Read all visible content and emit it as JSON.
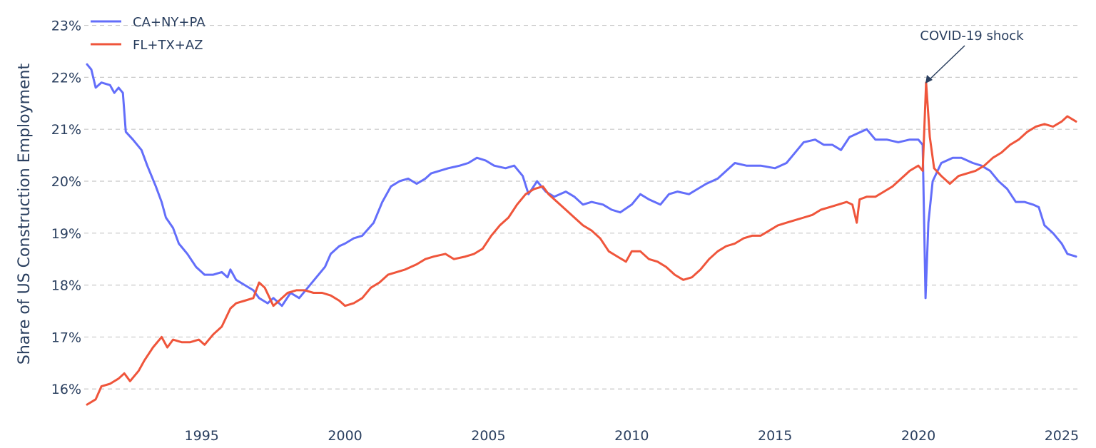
{
  "chart_data": {
    "type": "line",
    "ylabel": "Share of US Construction Employment",
    "xlabel": "",
    "xlim": [
      1990.9,
      2025.6
    ],
    "ylim": [
      15.55,
      23.2
    ],
    "y_ticks": [
      16,
      17,
      18,
      19,
      20,
      21,
      22,
      23
    ],
    "y_tick_labels": [
      "16%",
      "17%",
      "18%",
      "19%",
      "20%",
      "21%",
      "22%",
      "23%"
    ],
    "x_ticks": [
      1995,
      2000,
      2005,
      2010,
      2015,
      2020,
      2025
    ],
    "x_tick_labels": [
      "1995",
      "2000",
      "2005",
      "2010",
      "2015",
      "2020",
      "2025"
    ],
    "grid": "horizontal, dashed",
    "legend_position": "top-left",
    "annotation": {
      "text": "COVID-19 shock",
      "x": 2020.3,
      "y": 21.85
    },
    "series": [
      {
        "name": "CA+NY+PA",
        "color": "#636efa",
        "points": [
          [
            1991.0,
            22.25
          ],
          [
            1991.15,
            22.15
          ],
          [
            1991.3,
            21.8
          ],
          [
            1991.5,
            21.9
          ],
          [
            1991.8,
            21.85
          ],
          [
            1991.95,
            21.7
          ],
          [
            1992.1,
            21.8
          ],
          [
            1992.25,
            21.7
          ],
          [
            1992.35,
            20.95
          ],
          [
            1992.6,
            20.8
          ],
          [
            1992.9,
            20.6
          ],
          [
            1993.1,
            20.3
          ],
          [
            1993.4,
            19.9
          ],
          [
            1993.6,
            19.6
          ],
          [
            1993.75,
            19.3
          ],
          [
            1994.0,
            19.1
          ],
          [
            1994.2,
            18.8
          ],
          [
            1994.5,
            18.6
          ],
          [
            1994.8,
            18.35
          ],
          [
            1995.1,
            18.2
          ],
          [
            1995.4,
            18.2
          ],
          [
            1995.7,
            18.25
          ],
          [
            1995.9,
            18.15
          ],
          [
            1996.0,
            18.3
          ],
          [
            1996.2,
            18.1
          ],
          [
            1996.5,
            18.0
          ],
          [
            1996.8,
            17.9
          ],
          [
            1997.0,
            17.75
          ],
          [
            1997.3,
            17.65
          ],
          [
            1997.5,
            17.75
          ],
          [
            1997.8,
            17.6
          ],
          [
            1998.1,
            17.85
          ],
          [
            1998.4,
            17.75
          ],
          [
            1998.7,
            17.95
          ],
          [
            1999.0,
            18.15
          ],
          [
            1999.3,
            18.35
          ],
          [
            1999.5,
            18.6
          ],
          [
            1999.8,
            18.75
          ],
          [
            2000.0,
            18.8
          ],
          [
            2000.3,
            18.9
          ],
          [
            2000.6,
            18.95
          ],
          [
            2001.0,
            19.2
          ],
          [
            2001.3,
            19.6
          ],
          [
            2001.6,
            19.9
          ],
          [
            2001.9,
            20.0
          ],
          [
            2002.2,
            20.05
          ],
          [
            2002.5,
            19.95
          ],
          [
            2002.8,
            20.05
          ],
          [
            2003.0,
            20.15
          ],
          [
            2003.3,
            20.2
          ],
          [
            2003.6,
            20.25
          ],
          [
            2004.0,
            20.3
          ],
          [
            2004.3,
            20.35
          ],
          [
            2004.6,
            20.45
          ],
          [
            2004.9,
            20.4
          ],
          [
            2005.2,
            20.3
          ],
          [
            2005.6,
            20.25
          ],
          [
            2005.9,
            20.3
          ],
          [
            2006.2,
            20.1
          ],
          [
            2006.4,
            19.75
          ],
          [
            2006.7,
            20.0
          ],
          [
            2007.0,
            19.8
          ],
          [
            2007.3,
            19.7
          ],
          [
            2007.7,
            19.8
          ],
          [
            2008.0,
            19.7
          ],
          [
            2008.3,
            19.55
          ],
          [
            2008.6,
            19.6
          ],
          [
            2009.0,
            19.55
          ],
          [
            2009.3,
            19.45
          ],
          [
            2009.6,
            19.4
          ],
          [
            2010.0,
            19.55
          ],
          [
            2010.3,
            19.75
          ],
          [
            2010.6,
            19.65
          ],
          [
            2011.0,
            19.55
          ],
          [
            2011.3,
            19.75
          ],
          [
            2011.6,
            19.8
          ],
          [
            2012.0,
            19.75
          ],
          [
            2012.3,
            19.85
          ],
          [
            2012.6,
            19.95
          ],
          [
            2013.0,
            20.05
          ],
          [
            2013.3,
            20.2
          ],
          [
            2013.6,
            20.35
          ],
          [
            2014.0,
            20.3
          ],
          [
            2014.5,
            20.3
          ],
          [
            2015.0,
            20.25
          ],
          [
            2015.4,
            20.35
          ],
          [
            2015.7,
            20.55
          ],
          [
            2016.0,
            20.75
          ],
          [
            2016.4,
            20.8
          ],
          [
            2016.7,
            20.7
          ],
          [
            2017.0,
            20.7
          ],
          [
            2017.3,
            20.6
          ],
          [
            2017.6,
            20.85
          ],
          [
            2018.0,
            20.95
          ],
          [
            2018.2,
            21.0
          ],
          [
            2018.5,
            20.8
          ],
          [
            2018.9,
            20.8
          ],
          [
            2019.3,
            20.75
          ],
          [
            2019.7,
            20.8
          ],
          [
            2020.0,
            20.8
          ],
          [
            2020.15,
            20.7
          ],
          [
            2020.25,
            17.75
          ],
          [
            2020.35,
            19.2
          ],
          [
            2020.5,
            20.0
          ],
          [
            2020.8,
            20.35
          ],
          [
            2021.2,
            20.45
          ],
          [
            2021.5,
            20.45
          ],
          [
            2021.9,
            20.35
          ],
          [
            2022.2,
            20.3
          ],
          [
            2022.5,
            20.2
          ],
          [
            2022.8,
            20.0
          ],
          [
            2023.1,
            19.85
          ],
          [
            2023.4,
            19.6
          ],
          [
            2023.7,
            19.6
          ],
          [
            2024.0,
            19.55
          ],
          [
            2024.2,
            19.5
          ],
          [
            2024.4,
            19.15
          ],
          [
            2024.7,
            19.0
          ],
          [
            2025.0,
            18.8
          ],
          [
            2025.2,
            18.6
          ],
          [
            2025.5,
            18.55
          ]
        ]
      },
      {
        "name": "FL+TX+AZ",
        "color": "#ef553b",
        "points": [
          [
            1991.0,
            15.7
          ],
          [
            1991.3,
            15.8
          ],
          [
            1991.5,
            16.05
          ],
          [
            1991.8,
            16.1
          ],
          [
            1992.1,
            16.2
          ],
          [
            1992.3,
            16.3
          ],
          [
            1992.5,
            16.15
          ],
          [
            1992.8,
            16.35
          ],
          [
            1993.0,
            16.55
          ],
          [
            1993.3,
            16.8
          ],
          [
            1993.6,
            17.0
          ],
          [
            1993.8,
            16.8
          ],
          [
            1994.0,
            16.95
          ],
          [
            1994.3,
            16.9
          ],
          [
            1994.6,
            16.9
          ],
          [
            1994.9,
            16.95
          ],
          [
            1995.1,
            16.85
          ],
          [
            1995.4,
            17.05
          ],
          [
            1995.7,
            17.2
          ],
          [
            1996.0,
            17.55
          ],
          [
            1996.2,
            17.65
          ],
          [
            1996.5,
            17.7
          ],
          [
            1996.8,
            17.75
          ],
          [
            1997.0,
            18.05
          ],
          [
            1997.2,
            17.95
          ],
          [
            1997.5,
            17.6
          ],
          [
            1997.8,
            17.75
          ],
          [
            1998.0,
            17.85
          ],
          [
            1998.3,
            17.9
          ],
          [
            1998.6,
            17.9
          ],
          [
            1998.9,
            17.85
          ],
          [
            1999.2,
            17.85
          ],
          [
            1999.5,
            17.8
          ],
          [
            1999.8,
            17.7
          ],
          [
            2000.0,
            17.6
          ],
          [
            2000.3,
            17.65
          ],
          [
            2000.6,
            17.75
          ],
          [
            2000.9,
            17.95
          ],
          [
            2001.2,
            18.05
          ],
          [
            2001.5,
            18.2
          ],
          [
            2001.8,
            18.25
          ],
          [
            2002.1,
            18.3
          ],
          [
            2002.5,
            18.4
          ],
          [
            2002.8,
            18.5
          ],
          [
            2003.1,
            18.55
          ],
          [
            2003.5,
            18.6
          ],
          [
            2003.8,
            18.5
          ],
          [
            2004.2,
            18.55
          ],
          [
            2004.5,
            18.6
          ],
          [
            2004.8,
            18.7
          ],
          [
            2005.1,
            18.95
          ],
          [
            2005.4,
            19.15
          ],
          [
            2005.7,
            19.3
          ],
          [
            2006.0,
            19.55
          ],
          [
            2006.3,
            19.75
          ],
          [
            2006.6,
            19.85
          ],
          [
            2006.9,
            19.9
          ],
          [
            2007.1,
            19.75
          ],
          [
            2007.4,
            19.6
          ],
          [
            2007.7,
            19.45
          ],
          [
            2008.0,
            19.3
          ],
          [
            2008.3,
            19.15
          ],
          [
            2008.6,
            19.05
          ],
          [
            2008.9,
            18.9
          ],
          [
            2009.2,
            18.65
          ],
          [
            2009.5,
            18.55
          ],
          [
            2009.8,
            18.45
          ],
          [
            2010.0,
            18.65
          ],
          [
            2010.3,
            18.65
          ],
          [
            2010.6,
            18.5
          ],
          [
            2010.9,
            18.45
          ],
          [
            2011.2,
            18.35
          ],
          [
            2011.5,
            18.2
          ],
          [
            2011.8,
            18.1
          ],
          [
            2012.1,
            18.15
          ],
          [
            2012.4,
            18.3
          ],
          [
            2012.7,
            18.5
          ],
          [
            2013.0,
            18.65
          ],
          [
            2013.3,
            18.75
          ],
          [
            2013.6,
            18.8
          ],
          [
            2013.9,
            18.9
          ],
          [
            2014.2,
            18.95
          ],
          [
            2014.5,
            18.95
          ],
          [
            2014.8,
            19.05
          ],
          [
            2015.1,
            19.15
          ],
          [
            2015.4,
            19.2
          ],
          [
            2015.7,
            19.25
          ],
          [
            2016.0,
            19.3
          ],
          [
            2016.3,
            19.35
          ],
          [
            2016.6,
            19.45
          ],
          [
            2016.9,
            19.5
          ],
          [
            2017.2,
            19.55
          ],
          [
            2017.5,
            19.6
          ],
          [
            2017.7,
            19.55
          ],
          [
            2017.85,
            19.2
          ],
          [
            2017.95,
            19.65
          ],
          [
            2018.2,
            19.7
          ],
          [
            2018.5,
            19.7
          ],
          [
            2018.8,
            19.8
          ],
          [
            2019.1,
            19.9
          ],
          [
            2019.4,
            20.05
          ],
          [
            2019.7,
            20.2
          ],
          [
            2020.0,
            20.3
          ],
          [
            2020.15,
            20.2
          ],
          [
            2020.27,
            21.9
          ],
          [
            2020.4,
            20.85
          ],
          [
            2020.55,
            20.25
          ],
          [
            2020.8,
            20.1
          ],
          [
            2021.1,
            19.95
          ],
          [
            2021.4,
            20.1
          ],
          [
            2021.7,
            20.15
          ],
          [
            2022.0,
            20.2
          ],
          [
            2022.3,
            20.3
          ],
          [
            2022.6,
            20.45
          ],
          [
            2022.9,
            20.55
          ],
          [
            2023.2,
            20.7
          ],
          [
            2023.5,
            20.8
          ],
          [
            2023.8,
            20.95
          ],
          [
            2024.1,
            21.05
          ],
          [
            2024.4,
            21.1
          ],
          [
            2024.7,
            21.05
          ],
          [
            2025.0,
            21.15
          ],
          [
            2025.2,
            21.25
          ],
          [
            2025.5,
            21.15
          ]
        ]
      }
    ]
  }
}
